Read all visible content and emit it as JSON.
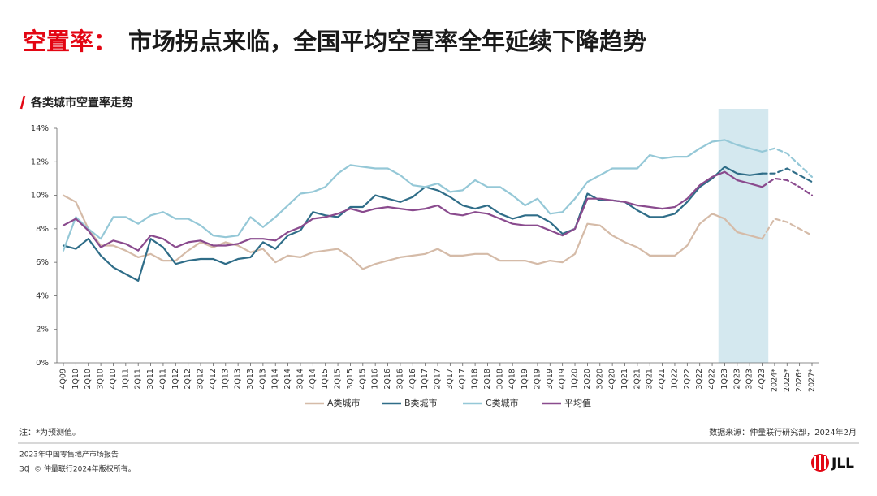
{
  "header": {
    "title_highlight": "空置率：",
    "title": "市场拐点来临，全国平均空置率全年延续下降趋势"
  },
  "chart_data": {
    "type": "line",
    "title": "各类城市空置率走势",
    "categories": [
      "4Q09",
      "1Q10",
      "2Q10",
      "3Q10",
      "4Q10",
      "1Q11",
      "2Q11",
      "3Q11",
      "4Q11",
      "1Q12",
      "2Q12",
      "3Q12",
      "4Q12",
      "1Q13",
      "2Q13",
      "3Q13",
      "4Q13",
      "1Q14",
      "2Q14",
      "3Q14",
      "4Q14",
      "1Q15",
      "2Q15",
      "3Q15",
      "4Q15",
      "1Q16",
      "2Q16",
      "3Q16",
      "4Q16",
      "1Q17",
      "2Q17",
      "3Q17",
      "4Q17",
      "1Q18",
      "2Q18",
      "3Q18",
      "4Q18",
      "1Q19",
      "2Q19",
      "3Q19",
      "4Q19",
      "1Q20",
      "2Q20",
      "3Q20",
      "4Q20",
      "1Q21",
      "2Q21",
      "3Q21",
      "4Q21",
      "1Q22",
      "2Q22",
      "3Q22",
      "4Q22",
      "1Q23",
      "2Q23",
      "3Q23",
      "4Q23",
      "2024*",
      "2025*",
      "2026*",
      "2027*"
    ],
    "series": [
      {
        "name": "A类城市",
        "color": "#d5bba8",
        "values": [
          10.0,
          9.6,
          8.0,
          7.0,
          7.0,
          6.7,
          6.3,
          6.5,
          6.1,
          6.1,
          6.7,
          7.2,
          6.9,
          7.2,
          7.0,
          6.6,
          6.8,
          6.0,
          6.4,
          6.3,
          6.6,
          6.7,
          6.8,
          6.3,
          5.6,
          5.9,
          6.1,
          6.3,
          6.4,
          6.5,
          6.8,
          6.4,
          6.4,
          6.5,
          6.5,
          6.1,
          6.1,
          6.1,
          5.9,
          6.1,
          6.0,
          6.5,
          8.3,
          8.2,
          7.6,
          7.2,
          6.9,
          6.4,
          6.4,
          6.4,
          7.0,
          8.3,
          8.9,
          8.6,
          7.8,
          7.6,
          7.4,
          8.6,
          8.4,
          8.0,
          7.6
        ]
      },
      {
        "name": "B类城市",
        "color": "#2f6d88",
        "values": [
          7.0,
          6.8,
          7.4,
          6.4,
          5.7,
          5.3,
          4.9,
          7.4,
          6.9,
          5.9,
          6.1,
          6.2,
          6.2,
          5.9,
          6.2,
          6.3,
          7.2,
          6.8,
          7.6,
          7.9,
          9.0,
          8.8,
          8.7,
          9.3,
          9.3,
          10.0,
          9.8,
          9.6,
          9.9,
          10.5,
          10.3,
          9.9,
          9.4,
          9.2,
          9.4,
          8.9,
          8.6,
          8.8,
          8.8,
          8.4,
          7.7,
          8.0,
          10.1,
          9.7,
          9.7,
          9.6,
          9.1,
          8.7,
          8.7,
          8.9,
          9.6,
          10.5,
          11.0,
          11.7,
          11.3,
          11.2,
          11.3,
          11.3,
          11.6,
          11.2,
          10.8
        ]
      },
      {
        "name": "C类城市",
        "color": "#95c8d7",
        "values": [
          6.7,
          8.7,
          8.0,
          7.4,
          8.7,
          8.7,
          8.3,
          8.8,
          9.0,
          8.6,
          8.6,
          8.2,
          7.6,
          7.5,
          7.6,
          8.7,
          8.1,
          8.7,
          9.4,
          10.1,
          10.2,
          10.5,
          11.3,
          11.8,
          11.7,
          11.6,
          11.6,
          11.2,
          10.6,
          10.5,
          10.7,
          10.2,
          10.3,
          10.9,
          10.5,
          10.5,
          10.0,
          9.4,
          9.8,
          8.9,
          9.0,
          9.8,
          10.8,
          11.2,
          11.6,
          11.6,
          11.6,
          12.4,
          12.2,
          12.3,
          12.3,
          12.8,
          13.2,
          13.3,
          13.0,
          12.8,
          12.6,
          12.8,
          12.5,
          11.8,
          11.1
        ]
      },
      {
        "name": "平均值",
        "color": "#8a4b8e",
        "values": [
          8.2,
          8.6,
          7.9,
          6.9,
          7.3,
          7.1,
          6.7,
          7.6,
          7.4,
          6.9,
          7.2,
          7.3,
          7.0,
          7.0,
          7.1,
          7.4,
          7.4,
          7.3,
          7.8,
          8.1,
          8.6,
          8.7,
          8.9,
          9.2,
          9.0,
          9.2,
          9.3,
          9.2,
          9.1,
          9.2,
          9.4,
          8.9,
          8.8,
          9.0,
          8.9,
          8.6,
          8.3,
          8.2,
          8.2,
          7.9,
          7.6,
          8.0,
          9.8,
          9.8,
          9.7,
          9.6,
          9.4,
          9.3,
          9.2,
          9.3,
          9.8,
          10.6,
          11.1,
          11.4,
          10.9,
          10.7,
          10.5,
          11.0,
          10.9,
          10.5,
          10.0
        ]
      }
    ],
    "forecast_from": "4Q23",
    "highlight": [
      "1Q23",
      "4Q23"
    ],
    "highlight_color": "#d4e8ef",
    "ylim": [
      0,
      14
    ],
    "yticks": [
      {
        "value": 0,
        "label": "0%"
      },
      {
        "value": 2,
        "label": "2%"
      },
      {
        "value": 4,
        "label": "4%"
      },
      {
        "value": 6,
        "label": "6%"
      },
      {
        "value": 8,
        "label": "8%"
      },
      {
        "value": 10,
        "label": "10%"
      },
      {
        "value": 12,
        "label": "12%"
      },
      {
        "value": 14,
        "label": "14%"
      }
    ],
    "legend": "bottom"
  },
  "notes": {
    "note": "注：*为预测值。",
    "source": "数据来源：仲量联行研究部，2024年2月"
  },
  "footer": {
    "report": "2023年中国零售地产市场报告",
    "page": "30",
    "copyright": "© 仲量联行2024年版权所有。",
    "logo": "JLL"
  }
}
